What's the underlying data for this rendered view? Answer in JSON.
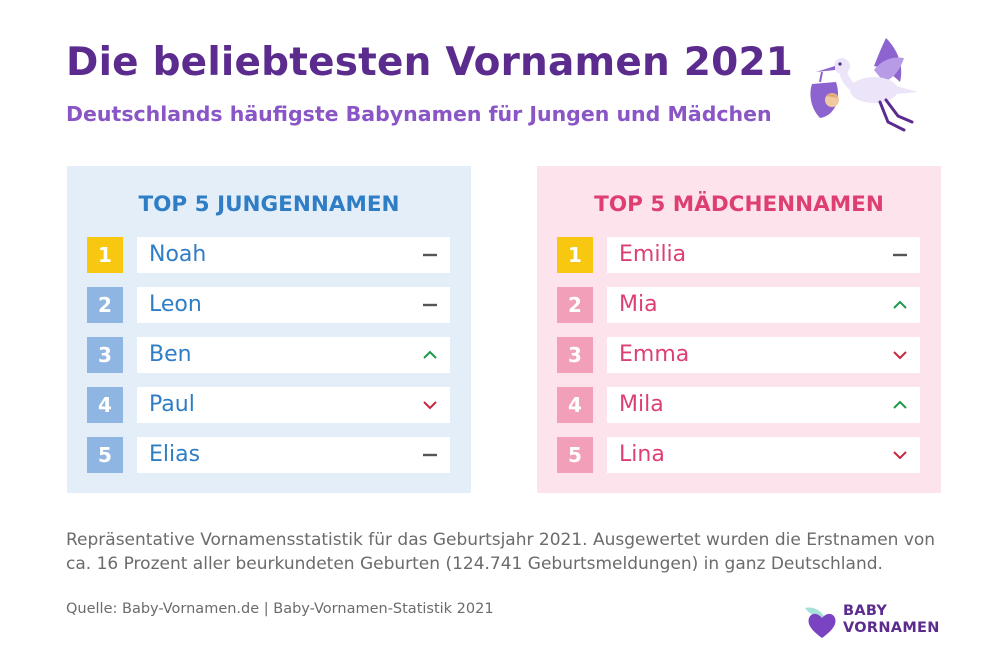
{
  "header": {
    "title": "Die beliebtesten Vornamen 2021",
    "subtitle": "Deutschlands häufigste Babynamen für Jungen und Mädchen"
  },
  "boys": {
    "title": "TOP 5 JUNGENNAMEN",
    "items": [
      {
        "rank": "1",
        "name": "Noah",
        "trend": "same"
      },
      {
        "rank": "2",
        "name": "Leon",
        "trend": "same"
      },
      {
        "rank": "3",
        "name": "Ben",
        "trend": "up"
      },
      {
        "rank": "4",
        "name": "Paul",
        "trend": "down"
      },
      {
        "rank": "5",
        "name": "Elias",
        "trend": "same"
      }
    ]
  },
  "girls": {
    "title": "TOP 5 MÄDCHENNAMEN",
    "items": [
      {
        "rank": "1",
        "name": "Emilia",
        "trend": "same"
      },
      {
        "rank": "2",
        "name": "Mia",
        "trend": "up"
      },
      {
        "rank": "3",
        "name": "Emma",
        "trend": "down"
      },
      {
        "rank": "4",
        "name": "Mila",
        "trend": "up"
      },
      {
        "rank": "5",
        "name": "Lina",
        "trend": "down"
      }
    ]
  },
  "footer": {
    "description": "Repräsentative Vornamensstatistik für das Geburtsjahr 2021. Ausgewertet wurden die Erstnamen von ca. 16 Prozent aller beurkundeten Geburten (124.741 Geburtsmeldungen) in ganz Deutschland.",
    "source": "Quelle: Baby-Vornamen.de | Baby-Vornamen-Statistik 2021",
    "brand_line1": "BABY",
    "brand_line2": "VORNAMEN"
  },
  "icons": {
    "stork": "stork-icon",
    "brand": "heart-leaf-icon",
    "same": "dash-icon",
    "up": "chevron-up-icon",
    "down": "chevron-down-icon"
  },
  "colors": {
    "title": "#5b2c8e",
    "subtitle": "#8a55c6",
    "boys_accent": "#2f7ec5",
    "girls_accent": "#de3f72",
    "gold": "#f8c811",
    "trend_up": "#1f9a4a",
    "trend_down": "#c8283e",
    "trend_same": "#555555"
  }
}
